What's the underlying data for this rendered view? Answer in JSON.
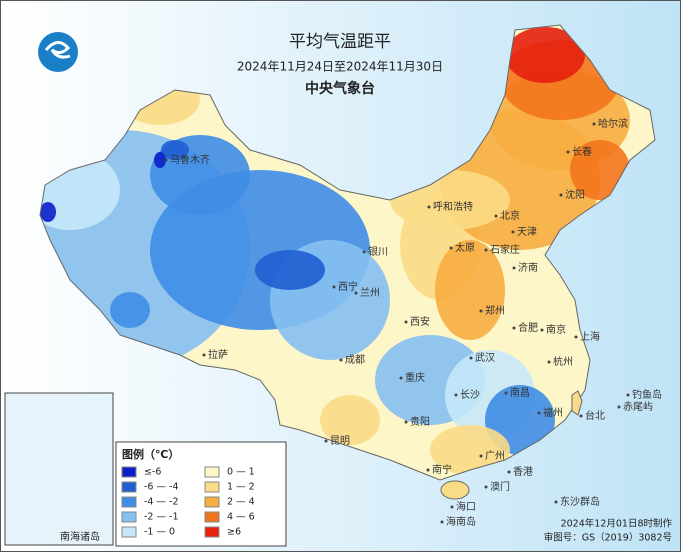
{
  "header": {
    "title": "平均气温距平",
    "date_range": "2024年11月24日至2024年11月30日",
    "agency": "中央气象台"
  },
  "legend": {
    "title": "图例（℃）",
    "items": [
      {
        "label": "≤-6",
        "color": "#0a1fc8"
      },
      {
        "label": "-6 — -4",
        "color": "#1f5ed0"
      },
      {
        "label": "-4 — -2",
        "color": "#3f8de6"
      },
      {
        "label": "-2 — -1",
        "color": "#86c0f2"
      },
      {
        "label": "-1 — 0",
        "color": "#c6e8f8"
      },
      {
        "label": "0 — 1",
        "color": "#fdf6c8"
      },
      {
        "label": "1 — 2",
        "color": "#fbdc86"
      },
      {
        "label": "2 — 4",
        "color": "#f7ad40"
      },
      {
        "label": "4 — 6",
        "color": "#f2741c"
      },
      {
        "label": "≥6",
        "color": "#e5200f"
      }
    ]
  },
  "cities": [
    "哈尔滨",
    "长春",
    "沈阳",
    "呼和浩特",
    "北京",
    "天津",
    "银川",
    "太原",
    "石家庄",
    "济南",
    "西宁",
    "兰州",
    "郑州",
    "西安",
    "合肥",
    "南京",
    "上海",
    "成都",
    "武汉",
    "杭州",
    "拉萨",
    "重庆",
    "长沙",
    "南昌",
    "福州",
    "台北",
    "贵阳",
    "昆明",
    "南宁",
    "广州",
    "香港",
    "澳门",
    "海口",
    "乌鲁木齐",
    "钓鱼岛",
    "赤尾屿",
    "东沙群岛",
    "海南岛"
  ],
  "inset": {
    "label": "南海诸岛"
  },
  "footer": {
    "made": "2024年12月01日8时制作",
    "approval": "审图号：GS（2019）3082号"
  }
}
